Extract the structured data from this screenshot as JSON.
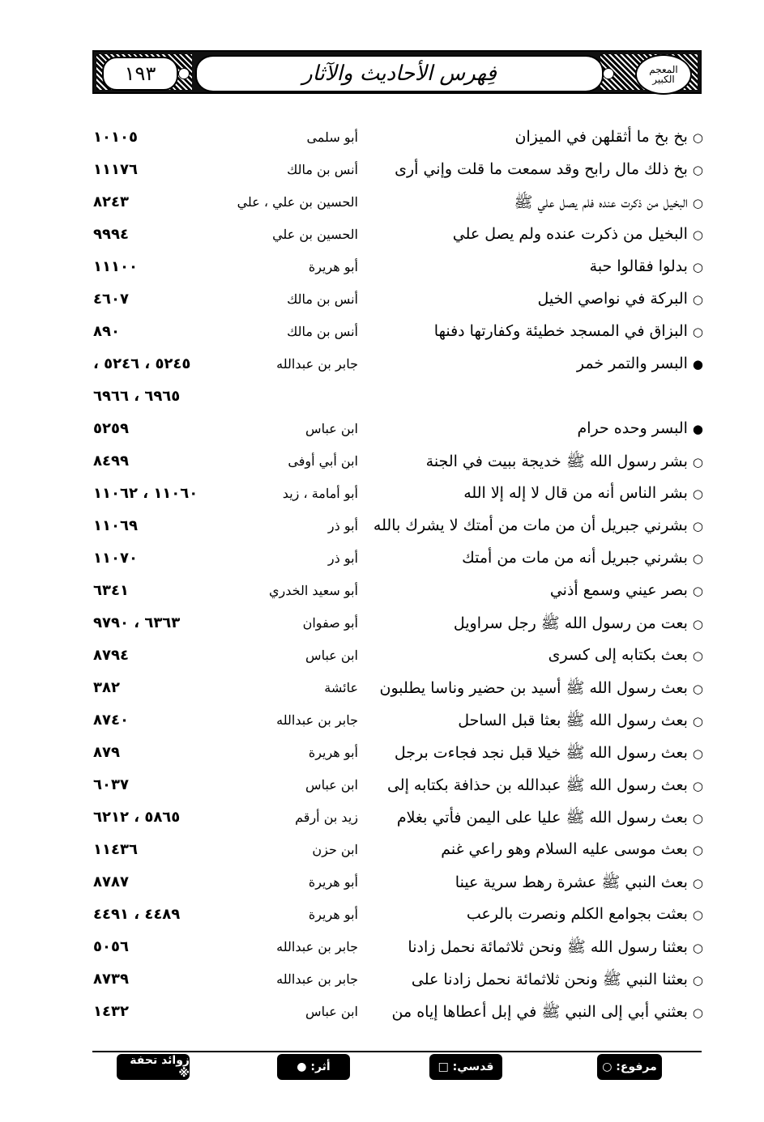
{
  "header": {
    "page_number": "١٩٣",
    "title": "فِهرس الأحاديث والآثار",
    "logo_text": "المعجم الكبير"
  },
  "rows": [
    {
      "marker": "○",
      "text": "بخ بخ ما أثقلهن في الميزان",
      "narrator": "أبو سلمى",
      "refs": "١٠١٠٥"
    },
    {
      "marker": "○",
      "text": "بخ ذلك مال رابح وقد سمعت ما قلت وإني أرى",
      "narrator": "أنس بن مالك",
      "refs": "١١١٧٦"
    },
    {
      "marker": "○",
      "text": "البخيل من ذكرت عنده فلم يصل علي ﷺ",
      "narrator": "الحسين بن علي ، علي",
      "refs": "٨٢٤٣"
    },
    {
      "marker": "○",
      "text": "البخيل من ذكرت عنده ولم يصل علي",
      "narrator": "الحسين بن علي",
      "refs": "٩٩٩٤"
    },
    {
      "marker": "○",
      "text": "بدلوا فقالوا حبة",
      "narrator": "أبو هريرة",
      "refs": "١١١٠٠"
    },
    {
      "marker": "○",
      "text": "البركة في نواصي الخيل",
      "narrator": "أنس بن مالك",
      "refs": "٤٦٠٧"
    },
    {
      "marker": "○",
      "text": "البزاق في المسجد خطيئة وكفارتها دفنها",
      "narrator": "أنس بن مالك",
      "refs": "٨٩٠"
    },
    {
      "marker": "●",
      "text": "البسر والتمر خمر",
      "narrator": "جابر بن عبدالله",
      "refs": "٥٢٤٥ ، ٥٢٤٦ ،"
    },
    {
      "marker": "",
      "text": "",
      "narrator": "",
      "refs": "٦٩٦٥ ، ٦٩٦٦"
    },
    {
      "marker": "●",
      "text": "البسر وحده حرام",
      "narrator": "ابن عباس",
      "refs": "٥٢٥٩"
    },
    {
      "marker": "○",
      "text": "بشر رسول الله ﷺ خديجة ببيت في الجنة",
      "narrator": "ابن أبي أوفى",
      "refs": "٨٤٩٩"
    },
    {
      "marker": "○",
      "text": "بشر الناس أنه من قال لا إله إلا الله",
      "narrator": "أبو أمامة ، زيد",
      "refs": "١١٠٦٠ ، ١١٠٦٢"
    },
    {
      "marker": "○",
      "text": "بشرني جبريل أن من مات من أمتك لا يشرك بالله",
      "narrator": "أبو ذر",
      "refs": "١١٠٦٩"
    },
    {
      "marker": "○",
      "text": "بشرني جبريل أنه من مات من أمتك",
      "narrator": "أبو ذر",
      "refs": "١١٠٧٠"
    },
    {
      "marker": "○",
      "text": "بصر عيني وسمع أذني",
      "narrator": "أبو سعيد الخدري",
      "refs": "٦٣٤١"
    },
    {
      "marker": "○",
      "text": "بعت من رسول الله ﷺ رجل سراويل",
      "narrator": "أبو صفوان",
      "refs": "٦٣٦٣ ، ٩٧٩٠"
    },
    {
      "marker": "○",
      "text": "بعث بكتابه إلى كسرى",
      "narrator": "ابن عباس",
      "refs": "٨٧٩٤"
    },
    {
      "marker": "○",
      "text": "بعث رسول الله ﷺ أسيد بن حضير وناسا يطلبون",
      "narrator": "عائشة",
      "refs": "٣٨٢"
    },
    {
      "marker": "○",
      "text": "بعث رسول الله ﷺ بعثا قبل الساحل",
      "narrator": "جابر بن عبدالله",
      "refs": "٨٧٤٠"
    },
    {
      "marker": "○",
      "text": "بعث رسول الله ﷺ خيلا قبل نجد فجاءت برجل",
      "narrator": "أبو هريرة",
      "refs": "٨٧٩"
    },
    {
      "marker": "○",
      "text": "بعث رسول الله ﷺ عبدالله بن حذافة بكتابه إلى",
      "narrator": "ابن عباس",
      "refs": "٦٠٣٧"
    },
    {
      "marker": "○",
      "text": "بعث رسول الله ﷺ عليا على اليمن فأتي بغلام",
      "narrator": "زيد بن أرقم",
      "refs": "٥٨٦٥ ، ٦٢١٢"
    },
    {
      "marker": "○",
      "text": "بعث موسى عليه السلام وهو راعي غنم",
      "narrator": "ابن حزن",
      "refs": "١١٤٣٦"
    },
    {
      "marker": "○",
      "text": "بعث النبي ﷺ عشرة رهط سرية عينا",
      "narrator": "أبو هريرة",
      "refs": "٨٧٨٧"
    },
    {
      "marker": "○",
      "text": "بعثت بجوامع الكلم ونصرت بالرعب",
      "narrator": "أبو هريرة",
      "refs": "٤٤٨٩ ، ٤٤٩١"
    },
    {
      "marker": "○",
      "text": "بعثنا رسول الله ﷺ ونحن ثلاثمائة نحمل زادنا",
      "narrator": "جابر بن عبدالله",
      "refs": "٥٠٥٦"
    },
    {
      "marker": "○",
      "text": "بعثنا النبي ﷺ ونحن ثلاثمائة نحمل زادنا على",
      "narrator": "جابر بن عبدالله",
      "refs": "٨٧٣٩"
    },
    {
      "marker": "○",
      "text": "بعثني أبي إلى النبي ﷺ في إبل أعطاها إياه من",
      "narrator": "ابن عباس",
      "refs": "١٤٣٢"
    }
  ],
  "legend": [
    {
      "label": "مرفوع: ○"
    },
    {
      "label": "قدسي: □"
    },
    {
      "label": "أثر: ●"
    },
    {
      "label": "زوائد تحفة ※"
    }
  ]
}
